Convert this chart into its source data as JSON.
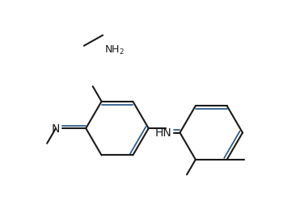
{
  "bg_color": "#ffffff",
  "line_color": "#1a1a1a",
  "double_bond_color": "#2a5a8a",
  "text_color": "#1a1a1a",
  "line_width": 1.5,
  "font_size": 9
}
